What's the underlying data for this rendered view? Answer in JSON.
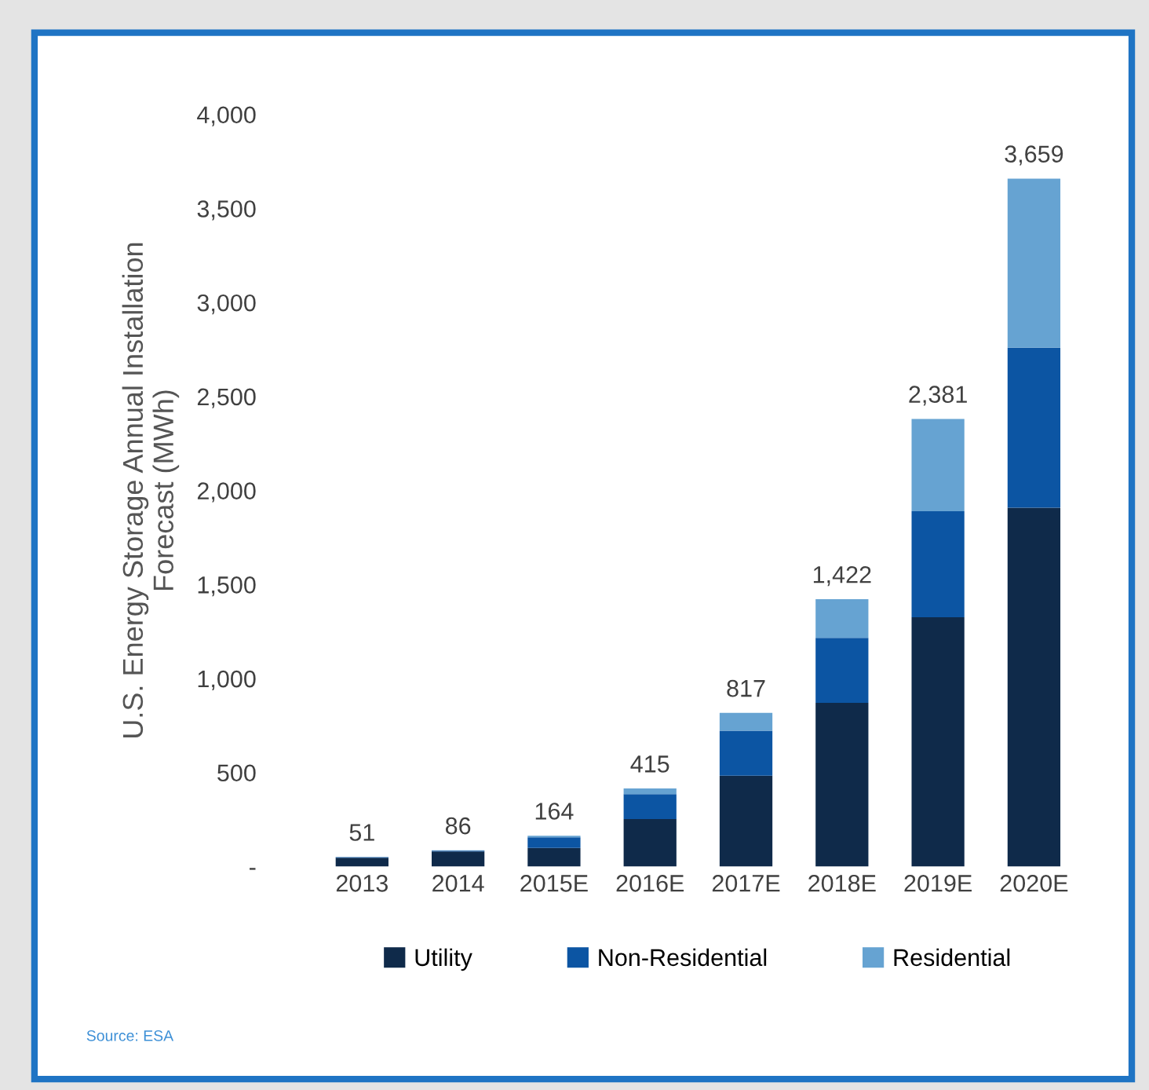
{
  "chart_data": {
    "type": "bar",
    "stacked": true,
    "ylabel": "U.S. Energy Storage Annual Installation\nForecast (MWh)",
    "categories": [
      "2013",
      "2014",
      "2015E",
      "2016E",
      "2017E",
      "2018E",
      "2019E",
      "2020E"
    ],
    "series": [
      {
        "name": "Utility",
        "color": "#0f2a4a",
        "values": [
          47,
          80,
          99,
          253,
          483,
          871,
          1326,
          1909
        ]
      },
      {
        "name": "Non-Residential",
        "color": "#0c55a3",
        "values": [
          3,
          4,
          56,
          132,
          239,
          345,
          564,
          851
        ]
      },
      {
        "name": "Residential",
        "color": "#66a3d2",
        "values": [
          1,
          2,
          9,
          30,
          95,
          206,
          491,
          899
        ]
      }
    ],
    "totals": [
      "51",
      "86",
      "164",
      "415",
      "817",
      "1,422",
      "2,381",
      "3,659"
    ],
    "ylim": [
      0,
      4000
    ],
    "yticks": [
      {
        "value": 0,
        "label": "-"
      },
      {
        "value": 500,
        "label": "500"
      },
      {
        "value": 1000,
        "label": "1,000"
      },
      {
        "value": 1500,
        "label": "1,500"
      },
      {
        "value": 2000,
        "label": "2,000"
      },
      {
        "value": 2500,
        "label": "2,500"
      },
      {
        "value": 3000,
        "label": "3,000"
      },
      {
        "value": 3500,
        "label": "3,500"
      },
      {
        "value": 4000,
        "label": "4,000"
      }
    ],
    "grid": false,
    "legend": "bottom",
    "annotations": [
      "Source: ESA"
    ]
  }
}
